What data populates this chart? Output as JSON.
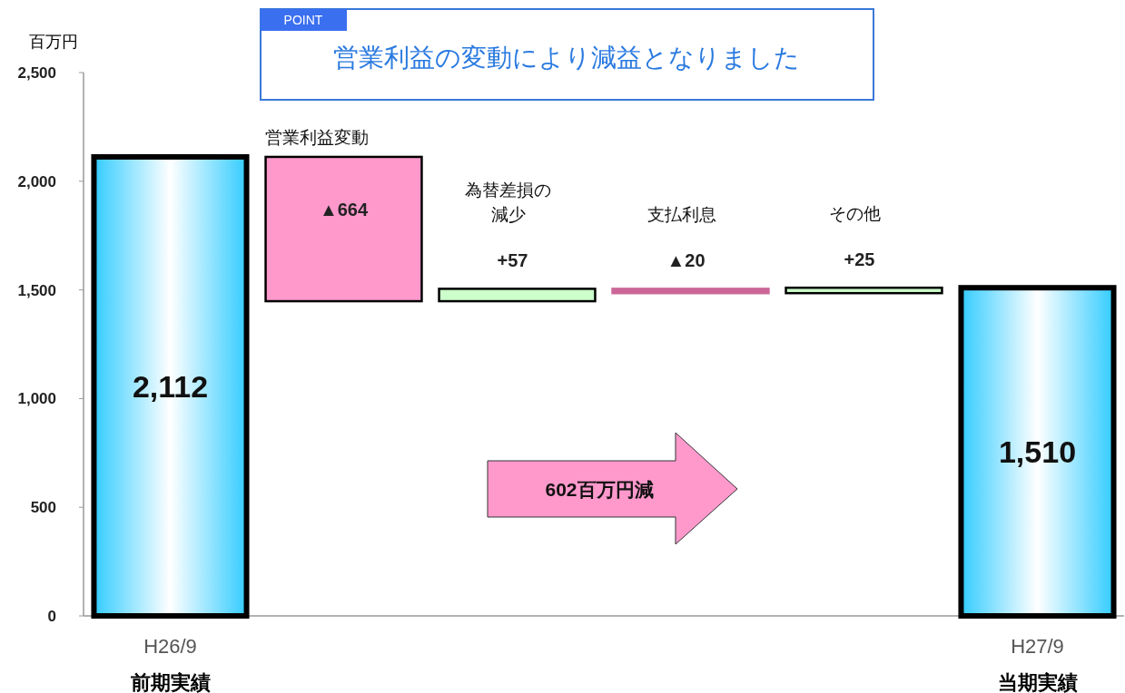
{
  "chart_data": {
    "type": "bar",
    "title": "営業利益の変動により減益となりました",
    "subtitle": "POINT",
    "ylabel": "百万円",
    "categories": [
      "H26/9",
      "営業利益変動",
      "為替差損の減少",
      "支払利息",
      "その他",
      "H27/9"
    ],
    "base": [
      0,
      2112,
      1448,
      1505,
      1485,
      0
    ],
    "values": [
      2112,
      -664,
      57,
      -20,
      25,
      1510
    ],
    "colors": [
      "#33ccff",
      "#ff99cc",
      "#ccffcc",
      "#cc6699",
      "#ccffcc",
      "#33ccff"
    ],
    "value_labels": [
      "2,112",
      "▲664",
      "+57",
      "▲20",
      "+25",
      "1,510"
    ],
    "ylim": [
      0,
      2500
    ],
    "yticks": [
      {
        "value": 0,
        "label": "0"
      },
      {
        "value": 500,
        "label": "500"
      },
      {
        "value": 1000,
        "label": "1,000"
      },
      {
        "value": 1500,
        "label": "1,500"
      },
      {
        "value": 2000,
        "label": "2,000"
      },
      {
        "value": 2500,
        "label": "2,500"
      }
    ],
    "annotations": [
      "前期実績",
      "当期実績",
      "602百万円減"
    ],
    "grid": false
  }
}
